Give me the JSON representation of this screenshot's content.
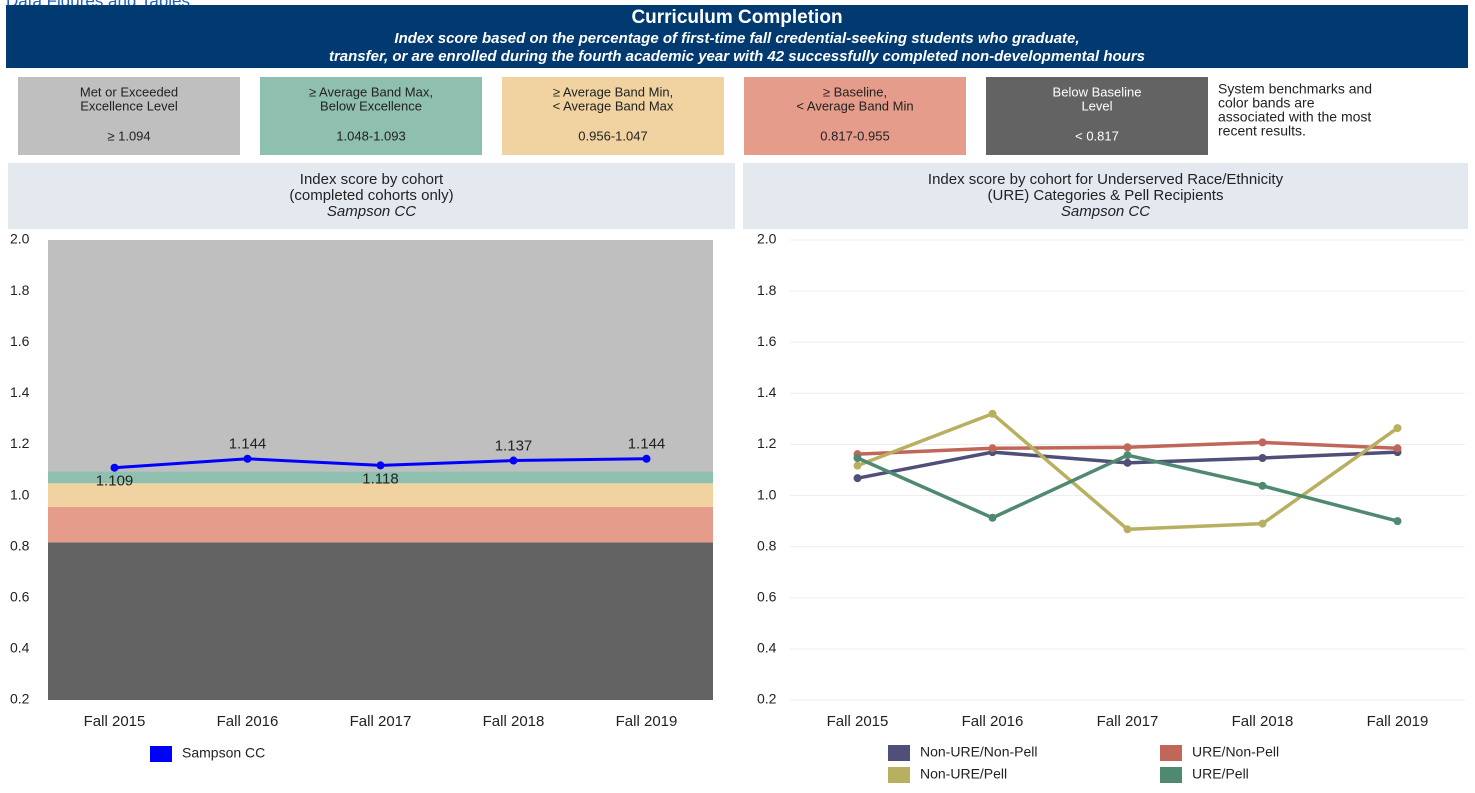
{
  "page_label": "Data Figures and Tables",
  "header": {
    "title": "Curriculum Completion",
    "subtitle_lines": [
      "Index score based on the percentage of first-time fall credential-seeking students who graduate,",
      "transfer, or  are enrolled during the fourth academic year with 42 successfully completed non-developmental hours"
    ]
  },
  "benchmarks": [
    {
      "label_lines": [
        "Met or Exceeded",
        "Excellence Level"
      ],
      "range": "≥ 1.094",
      "color": "#bfbfbf",
      "text_color": "#222222"
    },
    {
      "label_lines": [
        "≥ Average Band Max,",
        "Below Excellence"
      ],
      "range": "1.048-1.093",
      "color": "#8fbfae",
      "text_color": "#222222"
    },
    {
      "label_lines": [
        "≥ Average Band Min,",
        "< Average Band Max"
      ],
      "range": "0.956-1.047",
      "color": "#f0d3a0",
      "text_color": "#222222"
    },
    {
      "label_lines": [
        "≥ Baseline,",
        "< Average Band Min"
      ],
      "range": "0.817-0.955",
      "color": "#e59c8a",
      "text_color": "#222222"
    },
    {
      "label_lines": [
        "Below Baseline",
        "Level"
      ],
      "range": "< 0.817",
      "color": "#636363",
      "text_color": "#ffffff"
    }
  ],
  "benchmark_note": [
    "System benchmarks and",
    "color bands are",
    "associated with the most",
    "recent results."
  ],
  "chart_data": [
    {
      "type": "line",
      "title_lines": [
        "Index score by cohort",
        "(completed cohorts only)"
      ],
      "subtitle": "Sampson CC",
      "categories": [
        "Fall 2015",
        "Fall 2016",
        "Fall 2017",
        "Fall 2018",
        "Fall 2019"
      ],
      "series": [
        {
          "name": "Sampson CC",
          "color": "#0000ff",
          "values": [
            1.109,
            1.144,
            1.118,
            1.137,
            1.144
          ]
        }
      ],
      "data_labels": true,
      "bands": {
        "thresholds": [
          0.817,
          0.956,
          1.048,
          1.094
        ],
        "colors": [
          "#636363",
          "#e59c8a",
          "#f0d3a0",
          "#8fbfae",
          "#bfbfbf"
        ]
      },
      "ylim": [
        0.2,
        2.0
      ],
      "yticks": [
        0.2,
        0.4,
        0.6,
        0.8,
        {
          "value": 1.0,
          "label": "1.0"
        },
        1.2,
        1.4,
        1.6,
        1.8,
        {
          "value": 2.0,
          "label": "2.0"
        }
      ],
      "grid": false
    },
    {
      "type": "line",
      "title_lines": [
        "Index score by cohort for Underserved Race/Ethnicity",
        "(URE) Categories & Pell Recipients"
      ],
      "subtitle": "Sampson CC",
      "categories": [
        "Fall 2015",
        "Fall 2016",
        "Fall 2017",
        "Fall 2018",
        "Fall 2019"
      ],
      "series": [
        {
          "name": "Non-URE/Non-Pell",
          "color": "#4f4f7a",
          "values": [
            1.068,
            1.17,
            1.128,
            1.147,
            1.17
          ]
        },
        {
          "name": "URE/Non-Pell",
          "color": "#c0675a",
          "values": [
            1.162,
            1.185,
            1.189,
            1.208,
            1.185
          ]
        },
        {
          "name": "Non-URE/Pell",
          "color": "#b8b060",
          "values": [
            1.117,
            1.32,
            0.868,
            0.89,
            1.264
          ]
        },
        {
          "name": "URE/Pell",
          "color": "#4f8a70",
          "values": [
            1.147,
            0.913,
            1.158,
            1.038,
            0.9
          ]
        }
      ],
      "data_labels": false,
      "ylim": [
        0.2,
        2.0
      ],
      "yticks": [
        0.2,
        0.4,
        0.6,
        0.8,
        {
          "value": 1.0,
          "label": "1.0"
        },
        1.2,
        1.4,
        1.6,
        1.8,
        {
          "value": 2.0,
          "label": "2.0"
        }
      ],
      "grid": true
    }
  ]
}
